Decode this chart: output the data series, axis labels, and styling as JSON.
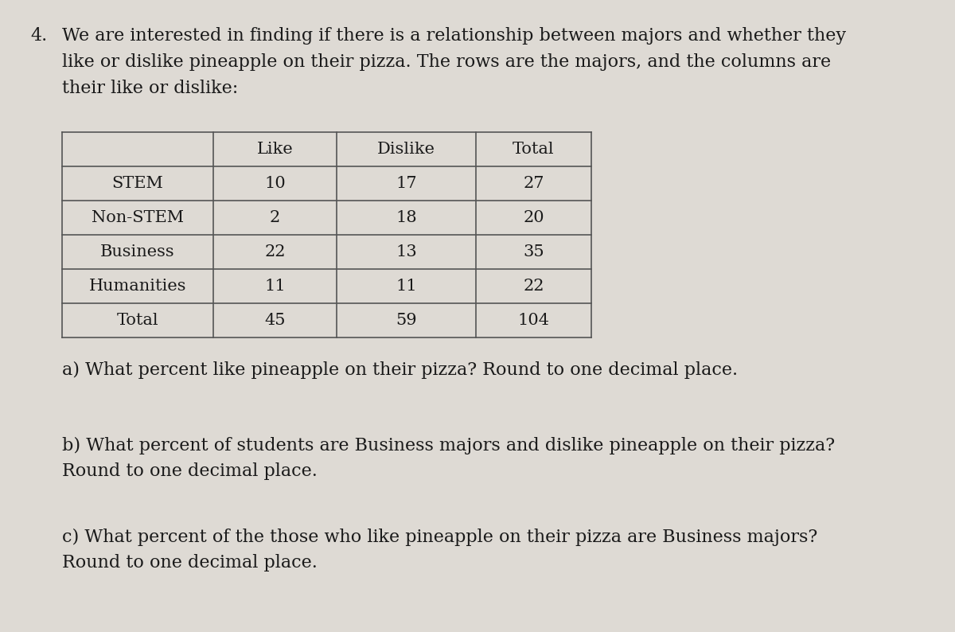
{
  "background_color": "#dedad4",
  "question_number": "4.",
  "intro_text": "We are interested in finding if there is a relationship between majors and whether they\nlike or dislike pineapple on their pizza. The rows are the majors, and the columns are\ntheir like or dislike:",
  "table": {
    "col_headers": [
      "",
      "Like",
      "Dislike",
      "Total"
    ],
    "rows": [
      [
        "STEM",
        "10",
        "17",
        "27"
      ],
      [
        "Non-STEM",
        "2",
        "18",
        "20"
      ],
      [
        "Business",
        "22",
        "13",
        "35"
      ],
      [
        "Humanities",
        "11",
        "11",
        "22"
      ],
      [
        "Total",
        "45",
        "59",
        "104"
      ]
    ]
  },
  "questions": [
    "a) What percent like pineapple on their pizza? Round to one decimal place.",
    "b) What percent of students are Business majors and dislike pineapple on their pizza?\nRound to one decimal place.",
    "c) What percent of the those who like pineapple on their pizza are Business majors?\nRound to one decimal place."
  ],
  "font_size_intro": 16,
  "font_size_table": 15,
  "font_size_questions": 16,
  "text_color": "#1a1a1a",
  "table_border_color": "#555555",
  "table_bg_color": "#dedad4"
}
